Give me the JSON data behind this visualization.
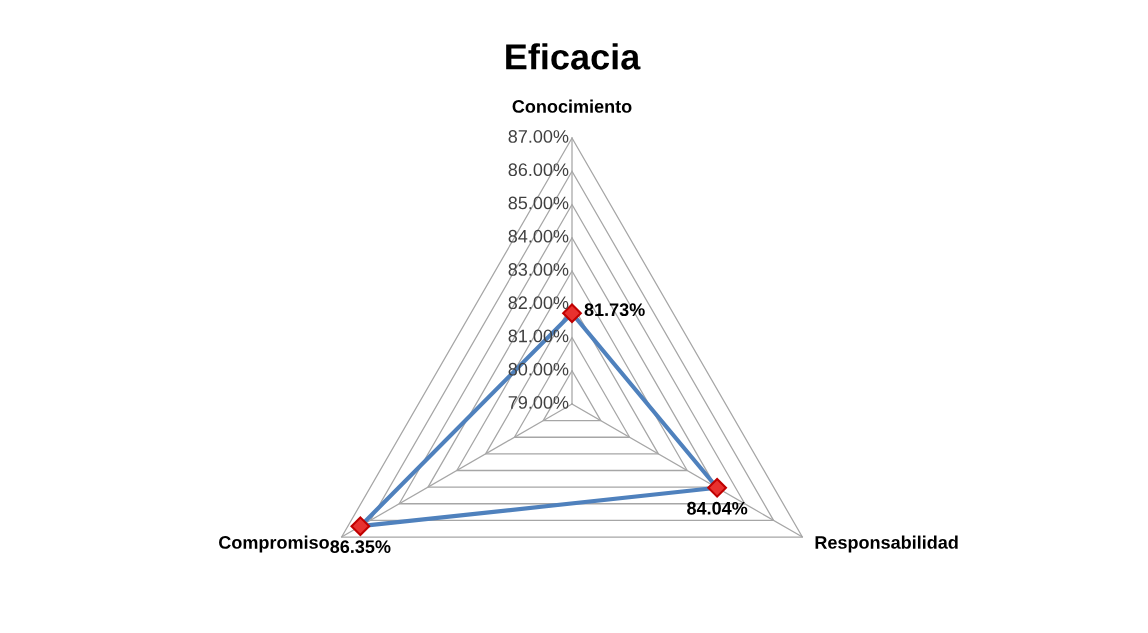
{
  "chart_data": {
    "type": "radar",
    "title": "Eficacia",
    "categories": [
      "Conocimiento",
      "Responsabilidad",
      "Compromiso"
    ],
    "series": [
      {
        "color": "#4f81bd",
        "colors": [
          "#e8312f",
          "#e8312f",
          "#e8312f"
        ],
        "values": [
          81.73,
          84.04,
          86.35
        ],
        "value_labels": [
          "81.73%",
          "84.04%",
          "86.35%"
        ]
      }
    ],
    "ylim": [
      79,
      87
    ],
    "yticks": [
      {
        "value": 79,
        "label": "79.00%"
      },
      {
        "value": 80,
        "label": "80.00%"
      },
      {
        "value": 81,
        "label": "81.00%"
      },
      {
        "value": 82,
        "label": "82.00%"
      },
      {
        "value": 83,
        "label": "83.00%"
      },
      {
        "value": 84,
        "label": "84.00%"
      },
      {
        "value": 85,
        "label": "85.00%"
      },
      {
        "value": 86,
        "label": "86.00%"
      },
      {
        "value": 87,
        "label": "87.00%"
      }
    ],
    "marker": "diamond",
    "grid": true,
    "legend": false
  }
}
